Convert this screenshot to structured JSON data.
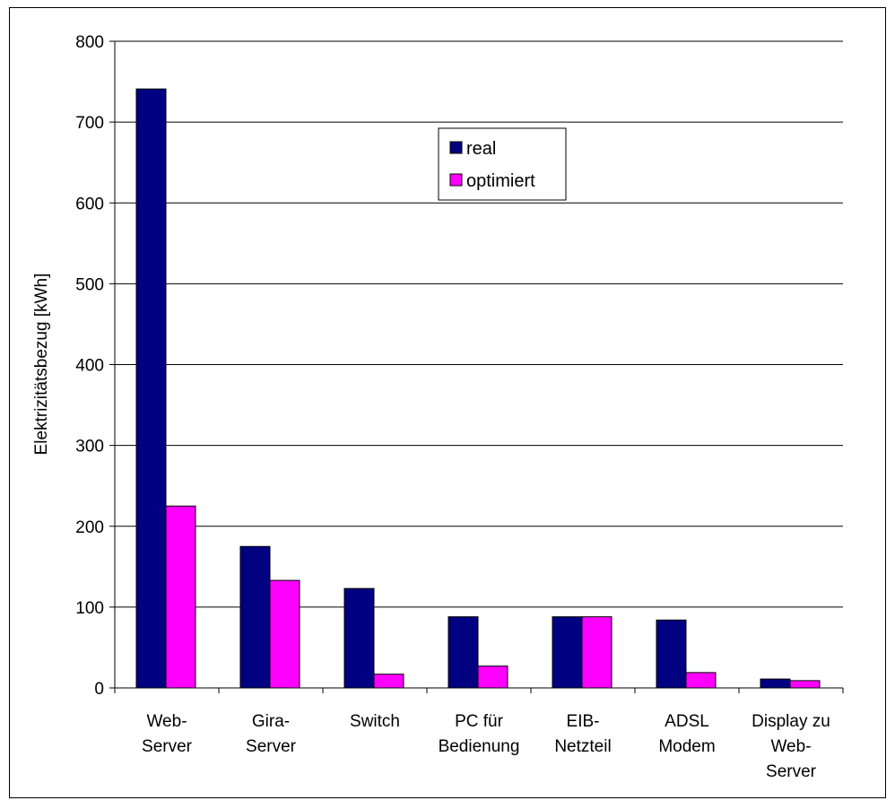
{
  "chart_data": {
    "type": "bar",
    "title": "",
    "xlabel": "",
    "ylabel": "Elektrizitätsbezug [kWh]",
    "ylim": [
      0,
      800
    ],
    "yticks": [
      0,
      100,
      200,
      300,
      400,
      500,
      600,
      700,
      800
    ],
    "grid": true,
    "legend_position": "top-center",
    "categories": [
      [
        "Web-",
        "Server"
      ],
      [
        "Gira-",
        "Server"
      ],
      [
        "Switch"
      ],
      [
        "PC für",
        "Bedienung"
      ],
      [
        "EIB-",
        "Netzteil"
      ],
      [
        "ADSL",
        "Modem"
      ],
      [
        "Display zu",
        "Web-",
        "Server"
      ]
    ],
    "series": [
      {
        "name": "real",
        "color": "#000080",
        "values": [
          741,
          175,
          123,
          88,
          88,
          84,
          11
        ]
      },
      {
        "name": "optimiert",
        "color": "#ff00ff",
        "values": [
          225,
          133,
          17,
          27,
          88,
          19,
          9
        ]
      }
    ]
  }
}
